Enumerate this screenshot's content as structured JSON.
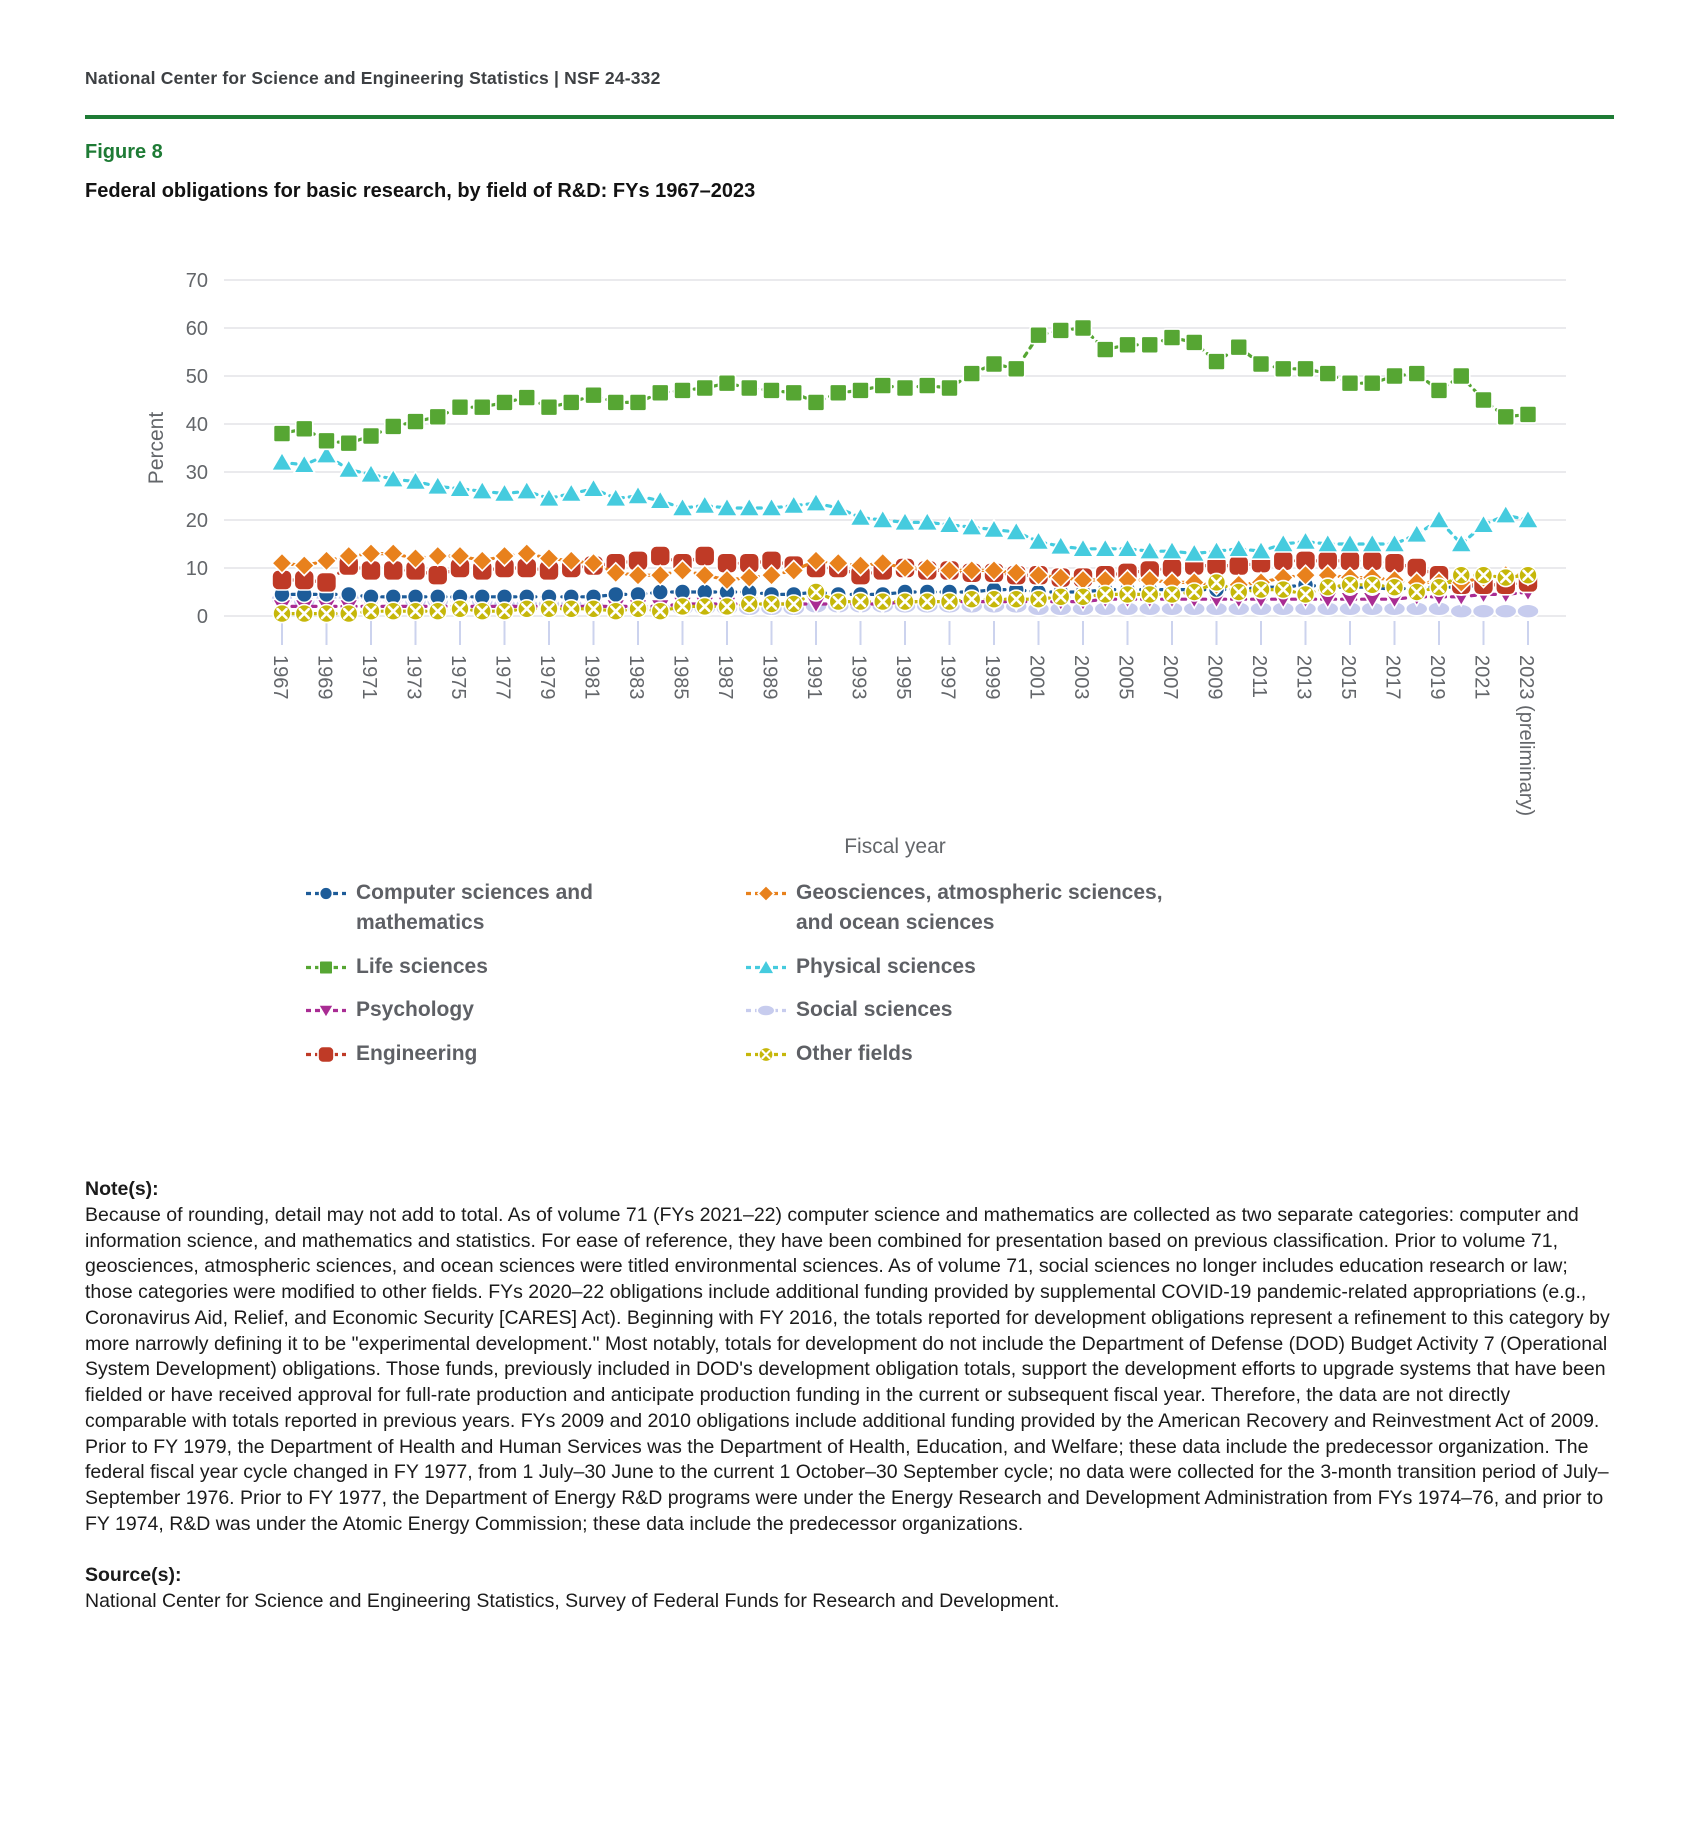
{
  "header": {
    "text": "National Center for Science and Engineering Statistics  |  NSF 24-332"
  },
  "figure": {
    "label": "Figure 8",
    "title": "Federal obligations for basic research, by field of R&D: FYs 1967–2023"
  },
  "chart_data": {
    "type": "line",
    "title": "Federal obligations for basic research, by field of R&D: FYs 1967–2023",
    "xlabel": "Fiscal year",
    "ylabel": "Percent",
    "ylim": [
      0,
      70
    ],
    "yticks": [
      0,
      10,
      20,
      30,
      40,
      50,
      60,
      70
    ],
    "grid": true,
    "legend_position": "bottom",
    "x_tick_labels": [
      "1967",
      "1969",
      "1971",
      "1973",
      "1975",
      "1977",
      "1979",
      "1981",
      "1983",
      "1985",
      "1987",
      "1989",
      "1991",
      "1993",
      "1995",
      "1997",
      "1999",
      "2001",
      "2003",
      "2005",
      "2007",
      "2009",
      "2011",
      "2013",
      "2015",
      "2017",
      "2019",
      "2021",
      "2023 (preliminary)"
    ],
    "years": [
      1967,
      1968,
      1969,
      1970,
      1971,
      1972,
      1973,
      1974,
      1975,
      1976,
      1977,
      1978,
      1979,
      1980,
      1981,
      1982,
      1983,
      1984,
      1985,
      1986,
      1987,
      1988,
      1989,
      1990,
      1991,
      1992,
      1993,
      1994,
      1995,
      1996,
      1997,
      1998,
      1999,
      2000,
      2001,
      2002,
      2003,
      2004,
      2005,
      2006,
      2007,
      2008,
      2009,
      2010,
      2011,
      2012,
      2013,
      2014,
      2015,
      2016,
      2017,
      2018,
      2019,
      2020,
      2021,
      2022,
      2023
    ],
    "series": [
      {
        "name": "Social sciences",
        "color": "#c7ccee",
        "marker": "ellipse",
        "values": [
          3.5,
          3,
          3.5,
          3.5,
          3.5,
          3.5,
          3,
          3,
          3.5,
          3,
          2.5,
          2.5,
          2.5,
          2.5,
          2,
          1.5,
          1.5,
          1.5,
          1.5,
          1.5,
          1.5,
          1.5,
          1.5,
          1.5,
          2,
          2,
          2,
          2,
          2,
          2,
          2,
          2,
          2,
          2,
          1.5,
          1.5,
          1.5,
          1.5,
          1.5,
          1.5,
          1.5,
          1.5,
          1.5,
          1.5,
          1.5,
          1.5,
          1.5,
          1.5,
          1.5,
          1.5,
          1.5,
          1.5,
          1.5,
          1,
          1,
          1,
          1
        ]
      },
      {
        "name": "Psychology",
        "color": "#a92c93",
        "marker": "triangle-down",
        "values": [
          2,
          2,
          2,
          2,
          2,
          2,
          2,
          2,
          2,
          2,
          2,
          2,
          2,
          2,
          2,
          2,
          2,
          2,
          2.5,
          2.5,
          2.5,
          2.5,
          2.5,
          2.5,
          2.5,
          2.5,
          2.5,
          2.5,
          3,
          3,
          3,
          3,
          3,
          3,
          3,
          3,
          3,
          3.5,
          3.5,
          3.5,
          3.5,
          3.5,
          3.5,
          3.5,
          3.5,
          3.5,
          3.5,
          3.5,
          3.5,
          3.5,
          3.5,
          4,
          4,
          4,
          4.5,
          4.5,
          5
        ]
      },
      {
        "name": "Computer sciences and mathematics",
        "color": "#1d5c99",
        "marker": "circle",
        "values": [
          4.5,
          4.5,
          4.5,
          4.5,
          4,
          4,
          4,
          4,
          4,
          4,
          4,
          4,
          4,
          4,
          4,
          4.5,
          4.5,
          5,
          5,
          5,
          5,
          5,
          4.5,
          4.5,
          5,
          4.5,
          4.5,
          4.5,
          5,
          5,
          5,
          5,
          5.5,
          5.5,
          5,
          5,
          5,
          5.5,
          5.5,
          5.5,
          5.5,
          5.5,
          5.5,
          5.5,
          6,
          6,
          6.5,
          6,
          6,
          6,
          5.5,
          6,
          6,
          6,
          6.5,
          6.5,
          7
        ]
      },
      {
        "name": "Engineering",
        "color": "#bf3a26",
        "marker": "rounded-square",
        "values": [
          7.5,
          7.5,
          7,
          10.5,
          9.5,
          9.5,
          9.5,
          8.5,
          10,
          9.5,
          10,
          10,
          9.5,
          10,
          10.5,
          11,
          11.5,
          12.5,
          11,
          12.5,
          11,
          11,
          11.5,
          10.5,
          10,
          10,
          8.5,
          9.5,
          10,
          9.5,
          9.5,
          9,
          9,
          8.5,
          8.5,
          8,
          8,
          8.5,
          9,
          9.5,
          10,
          10.5,
          10.5,
          10.5,
          11,
          11.5,
          11.5,
          11.5,
          11.5,
          11.5,
          11,
          10,
          8.5,
          6.5,
          6.5,
          6.5,
          7
        ]
      },
      {
        "name": "Geosciences, atmospheric sciences, and ocean sciences",
        "color": "#e8811c",
        "marker": "diamond",
        "values": [
          11,
          10.5,
          11.5,
          12.5,
          13,
          13,
          12,
          12.5,
          12.5,
          11.5,
          12.5,
          13,
          12,
          11.5,
          11,
          9,
          8.5,
          8.5,
          9.5,
          8.5,
          7.5,
          8,
          8.5,
          9.5,
          11.5,
          11,
          10.5,
          11,
          10,
          10,
          9.5,
          9.5,
          9.5,
          9,
          8.5,
          8,
          7.5,
          7.5,
          7.5,
          7.5,
          7,
          7,
          6.5,
          6.5,
          7,
          8,
          8.5,
          8.5,
          8,
          8,
          7.5,
          7,
          7,
          7,
          8,
          8.5,
          8.5
        ]
      },
      {
        "name": "Other fields",
        "color": "#c6b70a",
        "marker": "circle-x",
        "values": [
          0.5,
          0.5,
          0.5,
          0.5,
          1,
          1,
          1,
          1,
          1.5,
          1,
          1,
          1.5,
          1.5,
          1.5,
          1.5,
          1,
          1.5,
          1,
          2,
          2,
          2,
          2.5,
          2.5,
          2.5,
          5,
          3,
          3,
          3,
          3,
          3,
          3,
          3.5,
          3.5,
          3.5,
          3.5,
          4,
          4,
          4.5,
          4.5,
          4.5,
          4.5,
          5,
          7,
          5,
          5.5,
          5.5,
          4.5,
          6,
          6.5,
          6.5,
          6,
          5,
          6,
          8.5,
          8.5,
          8,
          8.5
        ]
      },
      {
        "name": "Physical sciences",
        "color": "#45cbde",
        "marker": "triangle-up",
        "values": [
          32,
          31.5,
          33.5,
          30.5,
          29.5,
          28.5,
          28,
          27,
          26.5,
          26,
          25.5,
          26,
          24.5,
          25.5,
          26.5,
          24.5,
          25,
          24,
          22.5,
          23,
          22.5,
          22.5,
          22.5,
          23,
          23.5,
          22.5,
          20.5,
          20,
          19.5,
          19.5,
          19,
          18.5,
          18,
          17.5,
          15.5,
          14.5,
          14,
          14,
          14,
          13.5,
          13.5,
          13,
          13.5,
          14,
          13.5,
          15,
          15.5,
          15,
          15,
          15,
          15,
          17,
          20,
          15,
          19,
          21,
          20
        ]
      },
      {
        "name": "Life sciences",
        "color": "#56a633",
        "marker": "square",
        "values": [
          38,
          39,
          36.5,
          36,
          37.5,
          39.5,
          40.5,
          41.5,
          43.5,
          43.5,
          44.5,
          45.5,
          43.5,
          44.5,
          46,
          44.5,
          44.5,
          46.5,
          47,
          47.5,
          48.5,
          47.5,
          47,
          46.5,
          44.5,
          46.5,
          47,
          48,
          47.5,
          48,
          47.5,
          50.5,
          52.5,
          51.5,
          58.5,
          59.5,
          60,
          55.5,
          56.5,
          56.5,
          58,
          57,
          53,
          56,
          52.5,
          51.5,
          51.5,
          50.5,
          48.5,
          48.5,
          50,
          50.5,
          47,
          50,
          45,
          41.5,
          42
        ]
      }
    ]
  },
  "notes": {
    "heading": "Note(s):",
    "body": "Because of rounding, detail may not add to total. As of volume 71 (FYs 2021–22) computer science and mathematics are collected as two separate categories: computer and information science, and mathematics and statistics. For ease of reference, they have been combined for presentation based on previous classification. Prior to volume 71, geosciences, atmospheric sciences, and ocean sciences were titled environmental sciences. As of volume 71, social sciences no longer includes education research or law; those categories were modified to other fields. FYs 2020–22 obligations include additional funding provided by supplemental COVID-19 pandemic-related appropriations (e.g., Coronavirus Aid, Relief, and Economic Security [CARES] Act). Beginning with FY 2016, the totals reported for development obligations represent a refinement to this category by more narrowly defining it to be \"experimental development.\" Most notably, totals for development do not include the Department of Defense (DOD) Budget Activity 7 (Operational System Development) obligations. Those funds, previously included in DOD's development obligation totals, support the development efforts to upgrade systems that have been fielded or have received approval for full-rate production and anticipate production funding in the current or subsequent fiscal year. Therefore, the data are not directly comparable with totals reported in previous years. FYs 2009 and 2010 obligations include additional funding provided by the American Recovery and Reinvestment Act of 2009. Prior to FY 1979, the Department of Health and Human Services was the Department of Health, Education, and Welfare; these data include the predecessor organization. The federal fiscal year cycle changed in FY 1977, from 1 July–30 June to the current 1 October–30 September cycle; no data were collected for the 3-month transition period of July–September 1976. Prior to FY 1977, the Department of Energy R&D programs were under the Energy Research and Development Administration from FYs 1974–76, and prior to FY 1974, R&D was under the Atomic Energy Commission; these data include the predecessor organizations."
  },
  "source": {
    "heading": "Source(s):",
    "body": "National Center for Science and Engineering Statistics, Survey of Federal Funds for Research and Development."
  }
}
